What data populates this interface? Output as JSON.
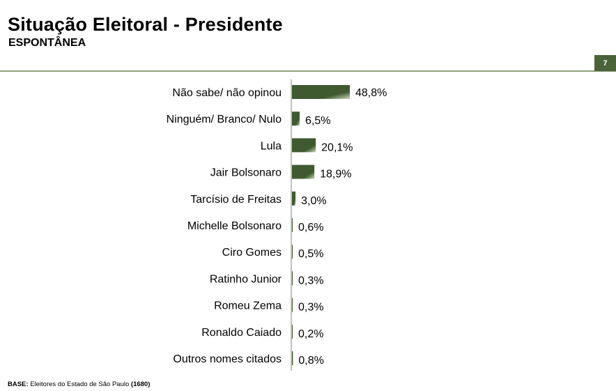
{
  "header": {
    "title": "Situação Eleitoral - Presidente",
    "subtitle": "ESPONTÂNEA",
    "page_number": "7"
  },
  "footer": {
    "base_label": "BASE:",
    "base_text": "Eleitores do Estado de São Paulo",
    "base_count": "(1680)"
  },
  "colors": {
    "bar_dark": "#3f5a2f",
    "bar_light": "#c9d6bd",
    "accent": "#4a6338",
    "rule": "#8da07c"
  },
  "chart_data": {
    "type": "bar",
    "orientation": "horizontal",
    "categories": [
      "Não sabe/ não opinou",
      "Ninguém/ Branco/ Nulo",
      "Lula",
      "Jair Bolsonaro",
      "Tarcísio de Freitas",
      "Michelle Bolsonaro",
      "Ciro Gomes",
      "Ratinho Junior",
      "Romeu Zema",
      "Ronaldo Caiado",
      "Outros nomes citados"
    ],
    "values": [
      48.8,
      6.5,
      20.1,
      18.9,
      3.0,
      0.6,
      0.5,
      0.3,
      0.3,
      0.2,
      0.8
    ],
    "value_labels": [
      "48,8%",
      "6,5%",
      "20,1%",
      "18,9%",
      "3,0%",
      "0,6%",
      "0,5%",
      "0,3%",
      "0,3%",
      "0,2%",
      "0,8%"
    ],
    "xlim": [
      0,
      100
    ],
    "grid": false,
    "legend": "none"
  }
}
